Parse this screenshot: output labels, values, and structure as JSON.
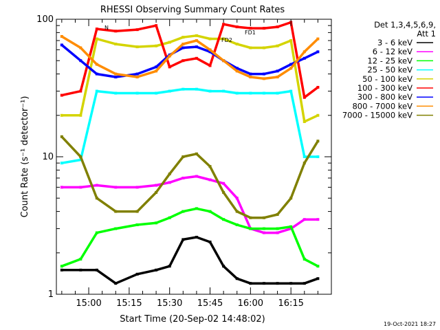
{
  "chart_data": {
    "type": "line",
    "title": "RHESSI Observing Summary Count Rates",
    "xlabel": "Start Time (20-Sep-02 14:48:02)",
    "ylabel": "Count Rate (s⁻¹ detector⁻¹)",
    "y_scale": "log",
    "ylim": [
      1,
      100
    ],
    "xlim": [
      "14:48",
      "16:30"
    ],
    "x_ticks": [
      "15:00",
      "15:15",
      "15:30",
      "15:45",
      "16:00",
      "16:15"
    ],
    "y_ticks": [
      "1",
      "10",
      "100"
    ],
    "legend_header": [
      "Det 1,3,4,5,6,9,",
      "Att 1"
    ],
    "legend_position": "right",
    "timestamp": "19-Oct-2021 18:27",
    "flag_labels": [
      "N",
      "FD1",
      "FD2"
    ],
    "series": [
      {
        "name": "3 - 6 keV",
        "color": "#000000",
        "x": [
          "14:50",
          "14:57",
          "15:03",
          "15:10",
          "15:18",
          "15:25",
          "15:30",
          "15:35",
          "15:40",
          "15:45",
          "15:50",
          "15:55",
          "16:00",
          "16:05",
          "16:10",
          "16:15",
          "16:20",
          "16:25"
        ],
        "values": [
          1.5,
          1.5,
          1.5,
          1.2,
          1.4,
          1.5,
          1.6,
          2.5,
          2.6,
          2.4,
          1.6,
          1.3,
          1.2,
          1.2,
          1.2,
          1.2,
          1.2,
          1.3
        ]
      },
      {
        "name": "6 - 12 keV",
        "color": "#ff00ff",
        "x": [
          "14:50",
          "14:57",
          "15:03",
          "15:10",
          "15:18",
          "15:25",
          "15:30",
          "15:35",
          "15:40",
          "15:45",
          "15:50",
          "15:55",
          "16:00",
          "16:05",
          "16:10",
          "16:15",
          "16:20",
          "16:25"
        ],
        "values": [
          6.0,
          6.0,
          6.2,
          6.0,
          6.0,
          6.2,
          6.5,
          7.0,
          7.2,
          6.8,
          6.4,
          5.0,
          3.0,
          2.8,
          2.8,
          3.0,
          3.5,
          3.5
        ]
      },
      {
        "name": "12 - 25 keV",
        "color": "#00ff00",
        "x": [
          "14:50",
          "14:57",
          "15:03",
          "15:10",
          "15:18",
          "15:25",
          "15:30",
          "15:35",
          "15:40",
          "15:45",
          "15:50",
          "15:55",
          "16:00",
          "16:05",
          "16:10",
          "16:15",
          "16:20",
          "16:25"
        ],
        "values": [
          1.6,
          1.8,
          2.8,
          3.0,
          3.2,
          3.3,
          3.6,
          4.0,
          4.2,
          4.0,
          3.5,
          3.2,
          3.0,
          3.0,
          3.0,
          3.1,
          1.8,
          1.6
        ]
      },
      {
        "name": "25 - 50 keV",
        "color": "#00ffff",
        "x": [
          "14:50",
          "14:57",
          "15:03",
          "15:10",
          "15:18",
          "15:25",
          "15:30",
          "15:35",
          "15:40",
          "15:45",
          "15:50",
          "15:55",
          "16:00",
          "16:05",
          "16:10",
          "16:15",
          "16:20",
          "16:25"
        ],
        "values": [
          9.0,
          9.5,
          30,
          29,
          29,
          29,
          30,
          31,
          31,
          30,
          30,
          29,
          29,
          29,
          29,
          30,
          10,
          10
        ]
      },
      {
        "name": "50 - 100 keV",
        "color": "#d4d400",
        "x": [
          "14:50",
          "14:57",
          "15:03",
          "15:10",
          "15:18",
          "15:25",
          "15:30",
          "15:35",
          "15:40",
          "15:45",
          "15:50",
          "15:55",
          "16:00",
          "16:05",
          "16:10",
          "16:15",
          "16:20",
          "16:25"
        ],
        "values": [
          20,
          20,
          72,
          66,
          63,
          64,
          68,
          74,
          76,
          72,
          72,
          66,
          62,
          62,
          64,
          70,
          18,
          20
        ]
      },
      {
        "name": "100 - 300 keV",
        "color": "#ff0000",
        "x": [
          "14:50",
          "14:57",
          "15:03",
          "15:10",
          "15:18",
          "15:25",
          "15:30",
          "15:35",
          "15:40",
          "15:45",
          "15:50",
          "15:55",
          "16:00",
          "16:05",
          "16:10",
          "16:15",
          "16:20",
          "16:25"
        ],
        "values": [
          28,
          30,
          85,
          82,
          84,
          90,
          45,
          50,
          52,
          46,
          92,
          88,
          86,
          86,
          88,
          95,
          27,
          32
        ]
      },
      {
        "name": "300 - 800 keV",
        "color": "#0000ff",
        "x": [
          "14:50",
          "14:57",
          "15:03",
          "15:10",
          "15:18",
          "15:25",
          "15:30",
          "15:35",
          "15:40",
          "15:45",
          "15:50",
          "15:55",
          "16:00",
          "16:05",
          "16:10",
          "16:15",
          "16:20",
          "16:25"
        ],
        "values": [
          65,
          50,
          40,
          38,
          40,
          45,
          55,
          62,
          63,
          58,
          50,
          44,
          40,
          40,
          42,
          47,
          52,
          58
        ]
      },
      {
        "name": "800 - 7000 keV",
        "color": "#ff8c00",
        "x": [
          "14:50",
          "14:57",
          "15:03",
          "15:10",
          "15:18",
          "15:25",
          "15:30",
          "15:35",
          "15:40",
          "15:45",
          "15:50",
          "15:55",
          "16:00",
          "16:05",
          "16:10",
          "16:15",
          "16:20",
          "16:25"
        ],
        "values": [
          75,
          62,
          47,
          40,
          38,
          42,
          54,
          66,
          70,
          60,
          50,
          42,
          38,
          37,
          38,
          44,
          58,
          72
        ]
      },
      {
        "name": "7000 - 15000 keV",
        "color": "#808000",
        "x": [
          "14:50",
          "14:57",
          "15:03",
          "15:10",
          "15:18",
          "15:25",
          "15:30",
          "15:35",
          "15:40",
          "15:45",
          "15:50",
          "15:55",
          "16:00",
          "16:05",
          "16:10",
          "16:15",
          "16:20",
          "16:25"
        ],
        "values": [
          14,
          10,
          5.0,
          4.0,
          4.0,
          5.5,
          7.5,
          10,
          10.5,
          8.5,
          5.5,
          4.0,
          3.6,
          3.6,
          3.8,
          5.0,
          9.0,
          13
        ]
      }
    ]
  }
}
